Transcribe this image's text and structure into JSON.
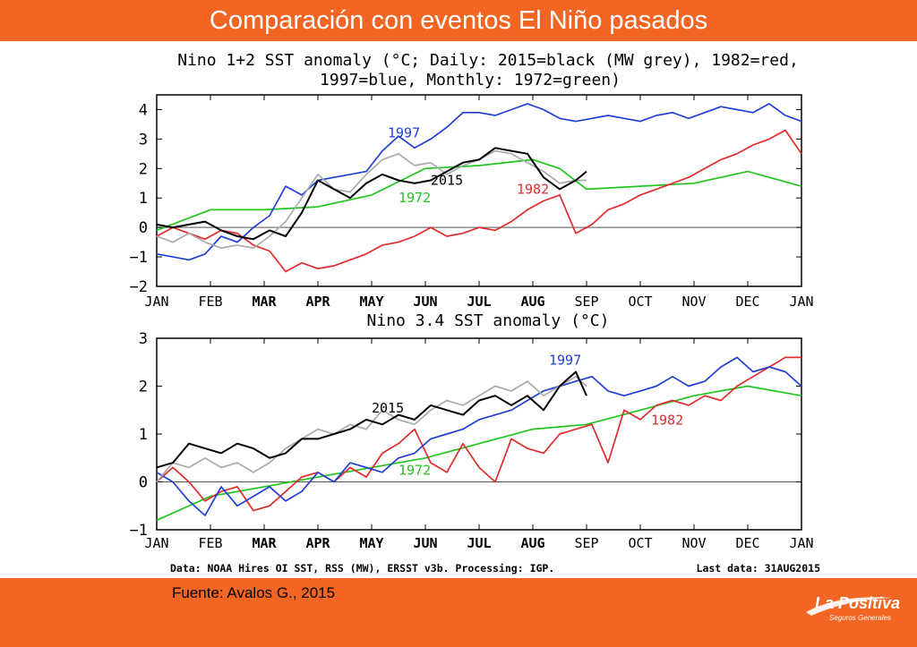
{
  "slide": {
    "title": "Comparación con eventos El Niño pasados",
    "source": "Fuente: Avalos G., 2015",
    "logo_name": "La Positiva",
    "logo_sub": "Seguros Generales",
    "accent_color": "#f26522"
  },
  "footnote": {
    "data": "Data: NOAA Hires OI SST, RSS (MW), ERSST v3b. Processing: IGP.",
    "last": "Last data: 31AUG2015"
  },
  "chart_data": [
    {
      "type": "line",
      "title": "Nino 1+2 SST anomaly (°C; Daily: 2015=black (MW grey), 1982=red,",
      "title_line2": "1997=blue, Monthly: 1972=green)",
      "x_ticks": [
        "JAN",
        "FEB",
        "MAR",
        "APR",
        "MAY",
        "JUN",
        "JUL",
        "AUG",
        "SEP",
        "OCT",
        "NOV",
        "DEC",
        "JAN"
      ],
      "y_ticks": [
        4,
        3,
        2,
        1,
        0,
        -1,
        -2
      ],
      "y_tick_labels": [
        "4",
        "3",
        "2",
        "1",
        "0",
        "−1",
        "−2"
      ],
      "ylim": [
        -2,
        4.5
      ],
      "x_range": [
        0,
        12
      ],
      "zero_line": true,
      "series": [
        {
          "name": "1997",
          "color": "#1f3fd4",
          "x": [
            0,
            0.3,
            0.6,
            0.9,
            1.2,
            1.5,
            1.8,
            2.1,
            2.4,
            2.7,
            3.0,
            3.3,
            3.6,
            3.9,
            4.2,
            4.5,
            4.8,
            5.1,
            5.4,
            5.7,
            6.0,
            6.3,
            6.6,
            6.9,
            7.2,
            7.5,
            7.8,
            8.1,
            8.4,
            8.7,
            9.0,
            9.3,
            9.6,
            9.9,
            10.2,
            10.5,
            10.8,
            11.1,
            11.4,
            11.7,
            12.0
          ],
          "y": [
            -0.9,
            -1.0,
            -1.1,
            -0.9,
            -0.3,
            -0.5,
            0.0,
            0.4,
            1.4,
            1.1,
            1.6,
            1.7,
            1.8,
            1.9,
            2.6,
            3.1,
            2.7,
            3.0,
            3.4,
            3.9,
            3.9,
            3.8,
            4.0,
            4.2,
            4.0,
            3.7,
            3.6,
            3.7,
            3.8,
            3.7,
            3.6,
            3.8,
            3.9,
            3.7,
            3.9,
            4.1,
            4.0,
            3.9,
            4.2,
            3.8,
            3.6
          ]
        },
        {
          "name": "1982",
          "color": "#e02b2b",
          "x": [
            0,
            0.3,
            0.6,
            0.9,
            1.2,
            1.5,
            1.8,
            2.1,
            2.4,
            2.7,
            3.0,
            3.3,
            3.6,
            3.9,
            4.2,
            4.5,
            4.8,
            5.1,
            5.4,
            5.7,
            6.0,
            6.3,
            6.6,
            6.9,
            7.2,
            7.5,
            7.8,
            8.1,
            8.4,
            8.7,
            9.0,
            9.3,
            9.6,
            9.9,
            10.2,
            10.5,
            10.8,
            11.1,
            11.4,
            11.7,
            12.0
          ],
          "y": [
            -0.3,
            0.0,
            -0.2,
            -0.4,
            -0.1,
            -0.2,
            -0.6,
            -0.8,
            -1.5,
            -1.2,
            -1.4,
            -1.3,
            -1.1,
            -0.9,
            -0.6,
            -0.5,
            -0.3,
            0.0,
            -0.3,
            -0.2,
            0.0,
            -0.1,
            0.2,
            0.6,
            0.9,
            1.1,
            -0.2,
            0.1,
            0.6,
            0.8,
            1.1,
            1.3,
            1.5,
            1.7,
            2.0,
            2.3,
            2.5,
            2.8,
            3.0,
            3.3,
            2.5
          ]
        },
        {
          "name": "2015",
          "color": "#000000",
          "x": [
            0,
            0.3,
            0.6,
            0.9,
            1.2,
            1.5,
            1.8,
            2.1,
            2.4,
            2.7,
            3.0,
            3.3,
            3.6,
            3.9,
            4.2,
            4.5,
            4.8,
            5.1,
            5.4,
            5.7,
            6.0,
            6.3,
            6.6,
            6.9,
            7.2,
            7.5,
            7.8,
            8.0
          ],
          "y": [
            0.1,
            0.0,
            0.1,
            0.2,
            -0.1,
            -0.3,
            -0.4,
            -0.1,
            -0.3,
            0.5,
            1.6,
            1.3,
            1.0,
            1.5,
            1.8,
            1.6,
            1.5,
            1.6,
            1.9,
            2.2,
            2.3,
            2.7,
            2.6,
            2.5,
            1.7,
            1.3,
            1.6,
            1.9
          ]
        },
        {
          "name": "2015 MW",
          "color": "#aaaaaa",
          "x": [
            0,
            0.3,
            0.6,
            0.9,
            1.2,
            1.5,
            1.8,
            2.1,
            2.4,
            2.7,
            3.0,
            3.3,
            3.6,
            3.9,
            4.2,
            4.5,
            4.8,
            5.1,
            5.4,
            5.7,
            6.0,
            6.3,
            6.6,
            6.9,
            7.2,
            7.5,
            7.8,
            8.0
          ],
          "y": [
            -0.3,
            -0.5,
            -0.2,
            -0.5,
            -0.7,
            -0.6,
            -0.7,
            -0.3,
            0.2,
            1.0,
            1.8,
            1.3,
            1.2,
            1.8,
            2.3,
            2.5,
            2.1,
            2.2,
            1.8,
            2.1,
            2.3,
            2.6,
            2.5,
            2.2,
            1.9,
            1.5,
            1.6,
            1.6
          ]
        },
        {
          "name": "1972",
          "color": "#22c41f",
          "x": [
            0,
            1,
            2,
            3,
            4,
            5,
            6,
            7,
            7.5,
            8,
            9,
            10,
            11,
            12
          ],
          "y": [
            -0.1,
            0.6,
            0.6,
            0.7,
            1.1,
            2.0,
            2.1,
            2.3,
            2.0,
            1.3,
            1.4,
            1.5,
            1.9,
            1.4
          ]
        }
      ],
      "annotations": [
        {
          "text": "1997",
          "x": 4.3,
          "y": 3.05
        },
        {
          "text": "2015",
          "x": 5.1,
          "y": 1.45
        },
        {
          "text": "1982",
          "x": 6.7,
          "y": 1.15
        },
        {
          "text": "1972",
          "x": 4.5,
          "y": 0.85
        }
      ]
    },
    {
      "type": "line",
      "title": "Nino 3.4 SST anomaly (°C)",
      "x_ticks": [
        "JAN",
        "FEB",
        "MAR",
        "APR",
        "MAY",
        "JUN",
        "JUL",
        "AUG",
        "SEP",
        "OCT",
        "NOV",
        "DEC",
        "JAN"
      ],
      "y_ticks": [
        3,
        2,
        1,
        0,
        -1
      ],
      "y_tick_labels": [
        "3",
        "2",
        "1",
        "0",
        "−1"
      ],
      "ylim": [
        -1,
        3
      ],
      "x_range": [
        0,
        12
      ],
      "zero_line": true,
      "series": [
        {
          "name": "1997",
          "color": "#1f3fd4",
          "x": [
            0,
            0.3,
            0.6,
            0.9,
            1.2,
            1.5,
            1.8,
            2.1,
            2.4,
            2.7,
            3.0,
            3.3,
            3.6,
            3.9,
            4.2,
            4.5,
            4.8,
            5.1,
            5.4,
            5.7,
            6.0,
            6.3,
            6.6,
            6.9,
            7.2,
            7.5,
            7.8,
            8.1,
            8.4,
            8.7,
            9.0,
            9.3,
            9.6,
            9.9,
            10.2,
            10.5,
            10.8,
            11.1,
            11.4,
            11.7,
            12.0
          ],
          "y": [
            0.2,
            0.0,
            -0.4,
            -0.7,
            -0.1,
            -0.5,
            -0.3,
            -0.1,
            -0.4,
            -0.2,
            0.2,
            0.0,
            0.4,
            0.3,
            0.2,
            0.5,
            0.6,
            0.9,
            1.0,
            1.1,
            1.3,
            1.4,
            1.5,
            1.7,
            1.9,
            2.0,
            2.1,
            2.2,
            1.9,
            1.8,
            1.9,
            2.0,
            2.2,
            2.0,
            2.1,
            2.4,
            2.6,
            2.3,
            2.4,
            2.3,
            2.0
          ]
        },
        {
          "name": "1982",
          "color": "#e02b2b",
          "x": [
            0,
            0.3,
            0.6,
            0.9,
            1.2,
            1.5,
            1.8,
            2.1,
            2.4,
            2.7,
            3.0,
            3.3,
            3.6,
            3.9,
            4.2,
            4.5,
            4.8,
            5.1,
            5.4,
            5.7,
            6.0,
            6.3,
            6.6,
            6.9,
            7.2,
            7.5,
            7.8,
            8.1,
            8.4,
            8.7,
            9.0,
            9.3,
            9.6,
            9.9,
            10.2,
            10.5,
            10.8,
            11.1,
            11.4,
            11.7,
            12.0
          ],
          "y": [
            0.0,
            0.3,
            0.0,
            -0.4,
            -0.2,
            -0.1,
            -0.6,
            -0.5,
            -0.2,
            0.1,
            0.2,
            0.0,
            0.3,
            0.1,
            0.6,
            0.8,
            1.1,
            0.4,
            0.2,
            0.8,
            0.3,
            0.0,
            0.9,
            0.7,
            0.6,
            1.0,
            1.1,
            1.2,
            0.4,
            1.5,
            1.3,
            1.6,
            1.7,
            1.6,
            1.8,
            1.7,
            2.0,
            2.2,
            2.4,
            2.6,
            2.6
          ]
        },
        {
          "name": "2015",
          "color": "#000000",
          "x": [
            0,
            0.3,
            0.6,
            0.9,
            1.2,
            1.5,
            1.8,
            2.1,
            2.4,
            2.7,
            3.0,
            3.3,
            3.6,
            3.9,
            4.2,
            4.5,
            4.8,
            5.1,
            5.4,
            5.7,
            6.0,
            6.3,
            6.6,
            6.9,
            7.2,
            7.5,
            7.8,
            8.0
          ],
          "y": [
            0.3,
            0.4,
            0.8,
            0.7,
            0.6,
            0.8,
            0.7,
            0.5,
            0.6,
            0.9,
            0.9,
            1.0,
            1.1,
            1.3,
            1.2,
            1.4,
            1.3,
            1.6,
            1.5,
            1.4,
            1.7,
            1.8,
            1.6,
            1.8,
            1.5,
            2.0,
            2.3,
            1.8
          ]
        },
        {
          "name": "2015 MW",
          "color": "#aaaaaa",
          "x": [
            0,
            0.3,
            0.6,
            0.9,
            1.2,
            1.5,
            1.8,
            2.1,
            2.4,
            2.7,
            3.0,
            3.3,
            3.6,
            3.9,
            4.2,
            4.5,
            4.8,
            5.1,
            5.4,
            5.7,
            6.0,
            6.3,
            6.6,
            6.9,
            7.2,
            7.5,
            7.8,
            8.0
          ],
          "y": [
            0.0,
            0.4,
            0.3,
            0.5,
            0.3,
            0.4,
            0.2,
            0.4,
            0.7,
            0.9,
            1.1,
            1.0,
            1.2,
            1.1,
            1.5,
            1.3,
            1.2,
            1.5,
            1.7,
            1.6,
            1.8,
            2.0,
            1.9,
            2.1,
            1.8,
            2.0,
            2.2,
            2.0
          ]
        },
        {
          "name": "1972",
          "color": "#22c41f",
          "x": [
            0,
            1,
            2,
            3,
            4,
            5,
            6,
            7,
            8,
            9,
            10,
            11,
            12
          ],
          "y": [
            -0.8,
            -0.3,
            -0.1,
            0.1,
            0.3,
            0.5,
            0.8,
            1.1,
            1.2,
            1.5,
            1.8,
            2.0,
            1.8
          ]
        }
      ],
      "annotations": [
        {
          "text": "1997",
          "x": 7.3,
          "y": 2.45
        },
        {
          "text": "2015",
          "x": 4.0,
          "y": 1.45
        },
        {
          "text": "1982",
          "x": 9.2,
          "y": 1.2
        },
        {
          "text": "1972",
          "x": 4.5,
          "y": 0.15
        }
      ]
    }
  ]
}
